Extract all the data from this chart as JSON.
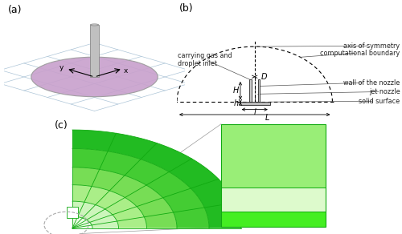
{
  "panel_a_label": "(a)",
  "panel_b_label": "(b)",
  "panel_c_label": "(c)",
  "bg_color": "#ffffff",
  "grid_color": "#aec6d8",
  "disk_color": "#c8a0cc",
  "disk_edge": "#999999",
  "nozzle_fill": "#c0c0c0",
  "nozzle_edge": "#888888",
  "annotations_b": [
    "axis of symmetry",
    "computational boundary",
    "wall of the nozzle",
    "jet nozzle",
    "solid surface"
  ],
  "annotation_left_b": "carrying gas and\ndroplet inlet",
  "green_layers": [
    "#00bb00",
    "#33cc33",
    "#66dd44",
    "#99ee77",
    "#bbf099",
    "#ddfacc"
  ],
  "green_inset_top": "#88ee66",
  "green_inset_mid": "#ccf5aa",
  "green_inset_bot": "#44ee22",
  "green_edge": "#11aa11"
}
